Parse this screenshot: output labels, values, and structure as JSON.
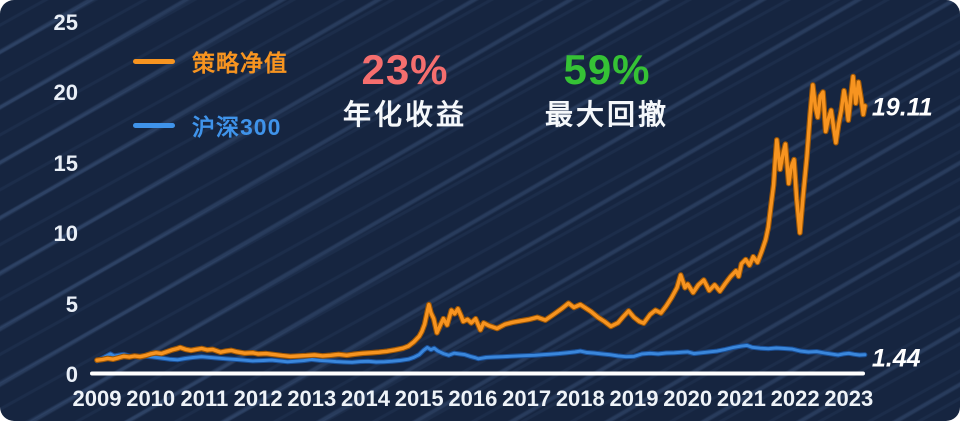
{
  "legend": {
    "items": [
      {
        "label": "策略净值",
        "color": "#f79420"
      },
      {
        "label": "沪深300",
        "color": "#3f93ea"
      }
    ]
  },
  "stats": [
    {
      "value": "23%",
      "label": "年化收益",
      "color": "#f56e6e"
    },
    {
      "value": "59%",
      "label": "最大回撤",
      "color": "#35c235"
    }
  ],
  "colors": {
    "background": "#162540",
    "stripe": "#3a5580",
    "axis": "#ffffff",
    "strategy": "#f79420",
    "strategy_edge": "#9c5606",
    "benchmark": "#3a87dc",
    "benchmark_edge": "#1a4f96"
  },
  "chart_data": {
    "type": "line",
    "title": "",
    "xlabel": "",
    "ylabel": "",
    "xlim": [
      2009,
      2023.5
    ],
    "ylim": [
      0,
      25
    ],
    "x_ticks": [
      2009,
      2010,
      2011,
      2012,
      2013,
      2014,
      2015,
      2016,
      2017,
      2018,
      2019,
      2020,
      2021,
      2022,
      2023
    ],
    "y_ticks": [
      0,
      5,
      10,
      15,
      20,
      25
    ],
    "grid": false,
    "legend_position": "top-left",
    "series": [
      {
        "name": "策略净值",
        "id": "strategy",
        "color": "#f79420",
        "edge": "#9c5606",
        "end_label": "19.11",
        "end_value": 19.11,
        "points": [
          [
            2009.0,
            1.05
          ],
          [
            2009.1,
            1.1
          ],
          [
            2009.2,
            1.18
          ],
          [
            2009.3,
            1.12
          ],
          [
            2009.4,
            1.22
          ],
          [
            2009.5,
            1.33
          ],
          [
            2009.6,
            1.28
          ],
          [
            2009.7,
            1.35
          ],
          [
            2009.8,
            1.3
          ],
          [
            2009.9,
            1.38
          ],
          [
            2010.0,
            1.5
          ],
          [
            2010.1,
            1.58
          ],
          [
            2010.2,
            1.52
          ],
          [
            2010.3,
            1.65
          ],
          [
            2010.4,
            1.78
          ],
          [
            2010.5,
            1.88
          ],
          [
            2010.55,
            1.95
          ],
          [
            2010.65,
            1.82
          ],
          [
            2010.75,
            1.75
          ],
          [
            2010.85,
            1.82
          ],
          [
            2010.95,
            1.88
          ],
          [
            2011.05,
            1.78
          ],
          [
            2011.15,
            1.82
          ],
          [
            2011.3,
            1.62
          ],
          [
            2011.4,
            1.7
          ],
          [
            2011.5,
            1.75
          ],
          [
            2011.6,
            1.65
          ],
          [
            2011.75,
            1.55
          ],
          [
            2011.9,
            1.58
          ],
          [
            2012.0,
            1.5
          ],
          [
            2012.15,
            1.52
          ],
          [
            2012.3,
            1.45
          ],
          [
            2012.45,
            1.38
          ],
          [
            2012.6,
            1.32
          ],
          [
            2012.75,
            1.35
          ],
          [
            2012.9,
            1.38
          ],
          [
            2013.05,
            1.42
          ],
          [
            2013.2,
            1.36
          ],
          [
            2013.35,
            1.4
          ],
          [
            2013.5,
            1.46
          ],
          [
            2013.65,
            1.4
          ],
          [
            2013.8,
            1.48
          ],
          [
            2013.95,
            1.54
          ],
          [
            2014.1,
            1.58
          ],
          [
            2014.25,
            1.62
          ],
          [
            2014.4,
            1.68
          ],
          [
            2014.55,
            1.78
          ],
          [
            2014.7,
            1.9
          ],
          [
            2014.8,
            2.05
          ],
          [
            2014.9,
            2.35
          ],
          [
            2015.0,
            2.75
          ],
          [
            2015.05,
            3.1
          ],
          [
            2015.1,
            3.6
          ],
          [
            2015.15,
            4.5
          ],
          [
            2015.18,
            5.0
          ],
          [
            2015.22,
            4.4
          ],
          [
            2015.27,
            4.0
          ],
          [
            2015.33,
            3.0
          ],
          [
            2015.4,
            3.6
          ],
          [
            2015.45,
            4.0
          ],
          [
            2015.52,
            3.55
          ],
          [
            2015.6,
            4.6
          ],
          [
            2015.66,
            4.35
          ],
          [
            2015.72,
            4.7
          ],
          [
            2015.78,
            4.2
          ],
          [
            2015.82,
            3.8
          ],
          [
            2015.9,
            3.95
          ],
          [
            2015.97,
            3.7
          ],
          [
            2016.05,
            4.0
          ],
          [
            2016.14,
            3.2
          ],
          [
            2016.2,
            3.7
          ],
          [
            2016.3,
            3.5
          ],
          [
            2016.45,
            3.3
          ],
          [
            2016.6,
            3.6
          ],
          [
            2016.75,
            3.75
          ],
          [
            2016.9,
            3.85
          ],
          [
            2017.05,
            3.95
          ],
          [
            2017.2,
            4.1
          ],
          [
            2017.35,
            3.9
          ],
          [
            2017.5,
            4.3
          ],
          [
            2017.65,
            4.7
          ],
          [
            2017.78,
            5.1
          ],
          [
            2017.88,
            4.8
          ],
          [
            2018.0,
            5.0
          ],
          [
            2018.1,
            4.75
          ],
          [
            2018.2,
            4.5
          ],
          [
            2018.33,
            4.1
          ],
          [
            2018.45,
            3.8
          ],
          [
            2018.57,
            3.45
          ],
          [
            2018.7,
            3.7
          ],
          [
            2018.8,
            4.15
          ],
          [
            2018.9,
            4.55
          ],
          [
            2019.0,
            4.1
          ],
          [
            2019.1,
            3.8
          ],
          [
            2019.18,
            3.68
          ],
          [
            2019.3,
            4.3
          ],
          [
            2019.4,
            4.6
          ],
          [
            2019.5,
            4.4
          ],
          [
            2019.6,
            4.9
          ],
          [
            2019.7,
            5.5
          ],
          [
            2019.8,
            6.2
          ],
          [
            2019.87,
            7.1
          ],
          [
            2019.95,
            6.2
          ],
          [
            2020.0,
            6.45
          ],
          [
            2020.1,
            5.85
          ],
          [
            2020.2,
            6.4
          ],
          [
            2020.3,
            6.75
          ],
          [
            2020.4,
            6.0
          ],
          [
            2020.5,
            6.4
          ],
          [
            2020.6,
            5.95
          ],
          [
            2020.7,
            6.5
          ],
          [
            2020.8,
            7.0
          ],
          [
            2020.9,
            7.4
          ],
          [
            2020.95,
            7.0
          ],
          [
            2021.0,
            7.9
          ],
          [
            2021.08,
            8.2
          ],
          [
            2021.15,
            7.8
          ],
          [
            2021.22,
            8.4
          ],
          [
            2021.3,
            8.0
          ],
          [
            2021.38,
            8.8
          ],
          [
            2021.45,
            9.6
          ],
          [
            2021.5,
            10.5
          ],
          [
            2021.55,
            12.0
          ],
          [
            2021.6,
            13.5
          ],
          [
            2021.63,
            15.2
          ],
          [
            2021.66,
            16.7
          ],
          [
            2021.72,
            14.6
          ],
          [
            2021.78,
            15.8
          ],
          [
            2021.82,
            16.4
          ],
          [
            2021.88,
            13.6
          ],
          [
            2021.93,
            14.8
          ],
          [
            2021.98,
            15.3
          ],
          [
            2022.03,
            12.5
          ],
          [
            2022.09,
            10.1
          ],
          [
            2022.15,
            12.8
          ],
          [
            2022.22,
            15.5
          ],
          [
            2022.28,
            18.5
          ],
          [
            2022.33,
            20.6
          ],
          [
            2022.38,
            19.0
          ],
          [
            2022.42,
            18.3
          ],
          [
            2022.47,
            19.8
          ],
          [
            2022.52,
            20.1
          ],
          [
            2022.57,
            17.3
          ],
          [
            2022.62,
            18.2
          ],
          [
            2022.67,
            18.8
          ],
          [
            2022.72,
            17.5
          ],
          [
            2022.76,
            16.5
          ],
          [
            2022.81,
            17.8
          ],
          [
            2022.86,
            18.8
          ],
          [
            2022.91,
            20.2
          ],
          [
            2022.95,
            19.4
          ],
          [
            2022.99,
            18.1
          ],
          [
            2023.04,
            19.8
          ],
          [
            2023.08,
            21.2
          ],
          [
            2023.13,
            19.3
          ],
          [
            2023.18,
            20.8
          ],
          [
            2023.23,
            19.6
          ],
          [
            2023.27,
            18.5
          ],
          [
            2023.3,
            19.11
          ]
        ]
      },
      {
        "name": "沪深300",
        "id": "benchmark",
        "color": "#3a87dc",
        "edge": "#1a4f96",
        "end_label": "1.44",
        "end_value": 1.44,
        "points": [
          [
            2009.0,
            1.0
          ],
          [
            2009.1,
            1.2
          ],
          [
            2009.2,
            1.4
          ],
          [
            2009.25,
            1.5
          ],
          [
            2009.32,
            1.35
          ],
          [
            2009.42,
            1.42
          ],
          [
            2009.5,
            1.46
          ],
          [
            2009.6,
            1.35
          ],
          [
            2009.7,
            1.3
          ],
          [
            2009.85,
            1.36
          ],
          [
            2010.0,
            1.3
          ],
          [
            2010.2,
            1.2
          ],
          [
            2010.35,
            1.12
          ],
          [
            2010.5,
            1.08
          ],
          [
            2010.65,
            1.18
          ],
          [
            2010.8,
            1.25
          ],
          [
            2010.95,
            1.3
          ],
          [
            2011.1,
            1.25
          ],
          [
            2011.25,
            1.2
          ],
          [
            2011.4,
            1.15
          ],
          [
            2011.6,
            1.1
          ],
          [
            2011.75,
            1.05
          ],
          [
            2011.9,
            1.0
          ],
          [
            2012.1,
            1.03
          ],
          [
            2012.25,
            1.06
          ],
          [
            2012.4,
            1.0
          ],
          [
            2012.55,
            0.94
          ],
          [
            2012.7,
            0.98
          ],
          [
            2012.85,
            1.02
          ],
          [
            2013.0,
            1.1
          ],
          [
            2013.15,
            1.04
          ],
          [
            2013.3,
            1.0
          ],
          [
            2013.45,
            0.95
          ],
          [
            2013.6,
            0.92
          ],
          [
            2013.75,
            0.9
          ],
          [
            2013.9,
            0.95
          ],
          [
            2014.05,
            0.97
          ],
          [
            2014.2,
            0.92
          ],
          [
            2014.35,
            0.94
          ],
          [
            2014.5,
            0.98
          ],
          [
            2014.65,
            1.04
          ],
          [
            2014.8,
            1.12
          ],
          [
            2014.9,
            1.25
          ],
          [
            2015.0,
            1.45
          ],
          [
            2015.08,
            1.75
          ],
          [
            2015.15,
            1.95
          ],
          [
            2015.22,
            1.8
          ],
          [
            2015.28,
            1.9
          ],
          [
            2015.35,
            1.7
          ],
          [
            2015.45,
            1.52
          ],
          [
            2015.55,
            1.4
          ],
          [
            2015.65,
            1.55
          ],
          [
            2015.75,
            1.5
          ],
          [
            2015.85,
            1.45
          ],
          [
            2015.95,
            1.32
          ],
          [
            2016.05,
            1.22
          ],
          [
            2016.1,
            1.15
          ],
          [
            2016.25,
            1.25
          ],
          [
            2016.4,
            1.28
          ],
          [
            2016.55,
            1.3
          ],
          [
            2016.7,
            1.33
          ],
          [
            2016.85,
            1.36
          ],
          [
            2017.0,
            1.38
          ],
          [
            2017.15,
            1.4
          ],
          [
            2017.3,
            1.44
          ],
          [
            2017.45,
            1.48
          ],
          [
            2017.6,
            1.52
          ],
          [
            2017.75,
            1.58
          ],
          [
            2017.9,
            1.64
          ],
          [
            2018.0,
            1.7
          ],
          [
            2018.12,
            1.6
          ],
          [
            2018.25,
            1.56
          ],
          [
            2018.4,
            1.5
          ],
          [
            2018.55,
            1.44
          ],
          [
            2018.7,
            1.36
          ],
          [
            2018.85,
            1.3
          ],
          [
            2019.0,
            1.32
          ],
          [
            2019.15,
            1.5
          ],
          [
            2019.3,
            1.54
          ],
          [
            2019.45,
            1.5
          ],
          [
            2019.6,
            1.56
          ],
          [
            2019.75,
            1.58
          ],
          [
            2019.9,
            1.62
          ],
          [
            2020.0,
            1.64
          ],
          [
            2020.12,
            1.52
          ],
          [
            2020.25,
            1.58
          ],
          [
            2020.4,
            1.64
          ],
          [
            2020.55,
            1.7
          ],
          [
            2020.7,
            1.82
          ],
          [
            2020.85,
            1.95
          ],
          [
            2021.0,
            2.05
          ],
          [
            2021.1,
            2.1
          ],
          [
            2021.2,
            1.97
          ],
          [
            2021.35,
            1.9
          ],
          [
            2021.5,
            1.87
          ],
          [
            2021.65,
            1.92
          ],
          [
            2021.8,
            1.88
          ],
          [
            2021.95,
            1.84
          ],
          [
            2022.1,
            1.7
          ],
          [
            2022.25,
            1.63
          ],
          [
            2022.4,
            1.66
          ],
          [
            2022.55,
            1.56
          ],
          [
            2022.7,
            1.48
          ],
          [
            2022.8,
            1.42
          ],
          [
            2022.9,
            1.5
          ],
          [
            2023.0,
            1.54
          ],
          [
            2023.1,
            1.47
          ],
          [
            2023.2,
            1.42
          ],
          [
            2023.3,
            1.44
          ]
        ]
      }
    ]
  }
}
